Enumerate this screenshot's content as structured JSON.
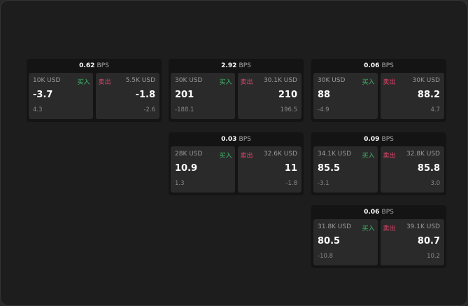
{
  "labels": {
    "buy": "买入",
    "sell": "卖出",
    "unit": "BPS"
  },
  "colors": {
    "buy": "#3fb86b",
    "sell": "#e0456a"
  },
  "cards": [
    {
      "spread": "0.62",
      "buy": {
        "qty": "10K USD",
        "price": "-3.7",
        "change": "4.3"
      },
      "sell": {
        "qty": "5.5K USD",
        "price": "-1.8",
        "change": "-2.6"
      }
    },
    {
      "spread": "2.92",
      "buy": {
        "qty": "30K USD",
        "price": "201",
        "change": "-188.1"
      },
      "sell": {
        "qty": "30.1K USD",
        "price": "210",
        "change": "196.5"
      }
    },
    {
      "spread": "0.06",
      "buy": {
        "qty": "30K USD",
        "price": "88",
        "change": "-4.9"
      },
      "sell": {
        "qty": "30K USD",
        "price": "88.2",
        "change": "4.7"
      }
    },
    {
      "spread": "0.03",
      "buy": {
        "qty": "28K USD",
        "price": "10.9",
        "change": "1.3"
      },
      "sell": {
        "qty": "32.6K USD",
        "price": "11",
        "change": "-1.8"
      }
    },
    {
      "spread": "0.09",
      "buy": {
        "qty": "34.1K USD",
        "price": "85.5",
        "change": "-3.1"
      },
      "sell": {
        "qty": "32.8K USD",
        "price": "85.8",
        "change": "3.0"
      }
    },
    {
      "spread": "0.06",
      "buy": {
        "qty": "31.8K USD",
        "price": "80.5",
        "change": "-10.8"
      },
      "sell": {
        "qty": "39.1K USD",
        "price": "80.7",
        "change": "10.2"
      }
    }
  ]
}
